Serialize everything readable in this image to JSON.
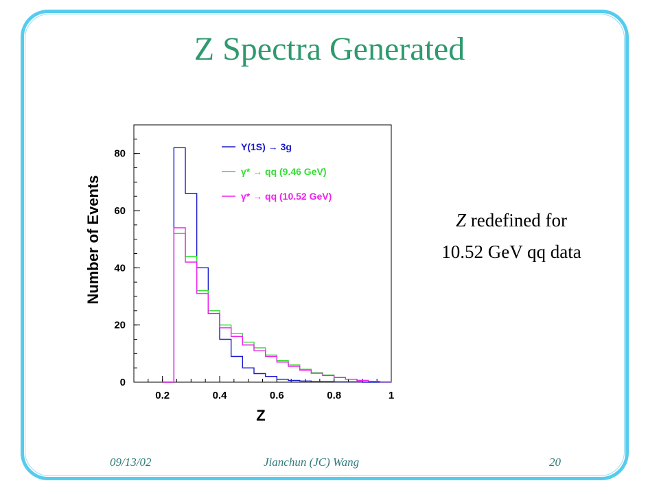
{
  "slide": {
    "title": "Z Spectra Generated",
    "note_italic": "Z",
    "note_line1_rest": " redefined  for",
    "note_line2": "10.52 GeV qq data",
    "footer_date": "09/13/02",
    "footer_author": "Jianchun (JC) Wang",
    "footer_page": "20",
    "frame_color": "#55ccee",
    "title_color": "#2e9a6e"
  },
  "chart_data": {
    "type": "line",
    "step": true,
    "xlabel": "Z",
    "ylabel": "Number of Events",
    "xlim": [
      0.1,
      1.0
    ],
    "ylim": [
      0,
      90
    ],
    "xticks": [
      "0.2",
      "0.4",
      "0.6",
      "0.8",
      "1"
    ],
    "yticks": [
      "0",
      "20",
      "40",
      "60",
      "80"
    ],
    "legend_position": "top-right",
    "grid": false,
    "series": [
      {
        "name": "Υ(1S) → 3g",
        "color": "#1a1acc",
        "x": [
          0.2,
          0.24,
          0.28,
          0.32,
          0.36,
          0.4,
          0.44,
          0.48,
          0.52,
          0.56,
          0.6,
          0.64,
          0.68,
          0.72,
          0.8,
          0.9,
          1.0
        ],
        "y": [
          0,
          82,
          66,
          40,
          24,
          15,
          9,
          5,
          3,
          2,
          1,
          0.6,
          0.4,
          0.2,
          0.1,
          0,
          0
        ]
      },
      {
        "name": "γ* → qq (9.46 GeV)",
        "color": "#33dd33",
        "x": [
          0.2,
          0.24,
          0.28,
          0.32,
          0.36,
          0.4,
          0.44,
          0.48,
          0.52,
          0.56,
          0.6,
          0.64,
          0.68,
          0.72,
          0.76,
          0.8,
          0.84,
          0.88,
          0.92,
          0.96,
          1.0
        ],
        "y": [
          0,
          52,
          44,
          32,
          25,
          20,
          17,
          14,
          12,
          9.5,
          7.5,
          6,
          4.5,
          3.3,
          2.5,
          1.7,
          1,
          0.6,
          0.3,
          0.1,
          0
        ]
      },
      {
        "name": "γ* → qq (10.52 GeV)",
        "color": "#ee22ee",
        "x": [
          0.2,
          0.24,
          0.28,
          0.32,
          0.36,
          0.4,
          0.44,
          0.48,
          0.52,
          0.56,
          0.6,
          0.64,
          0.68,
          0.72,
          0.76,
          0.8,
          0.84,
          0.88,
          0.92,
          0.96,
          1.0
        ],
        "y": [
          0,
          54,
          42,
          31,
          24,
          19,
          16,
          13,
          11,
          9,
          7,
          5.5,
          4.2,
          3.1,
          2.3,
          1.6,
          1,
          0.6,
          0.3,
          0.1,
          0
        ]
      }
    ]
  }
}
